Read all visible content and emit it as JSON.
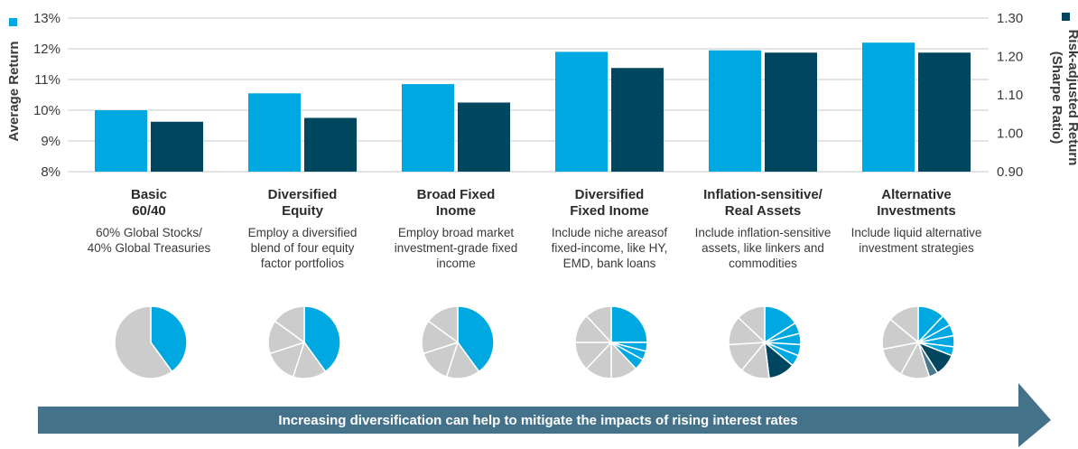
{
  "chart_data": {
    "type": "bar",
    "left_axis": {
      "label": "Average Return",
      "ticks": [
        "8%",
        "9%",
        "10%",
        "11%",
        "12%",
        "13%"
      ],
      "range": [
        8,
        13
      ],
      "color": "#00a8e1"
    },
    "right_axis": {
      "label_lines": [
        "Risk-adjusted Return",
        "(Sharpe Ratio)"
      ],
      "ticks": [
        "0.90",
        "1.00",
        "1.10",
        "1.20",
        "1.30"
      ],
      "range": [
        0.9,
        1.3
      ],
      "color": "#00465e"
    },
    "grid": true,
    "categories": [
      {
        "title": [
          "Basic",
          "60/40"
        ],
        "desc": [
          "60% Global Stocks/",
          "40% Global Treasuries"
        ]
      },
      {
        "title": [
          "Diversified",
          "Equity"
        ],
        "desc": [
          "Employ a diversified",
          "blend of four equity",
          "factor portfolios"
        ]
      },
      {
        "title": [
          "Broad Fixed",
          "Inome"
        ],
        "desc": [
          "Employ broad market",
          "investment-grade fixed",
          "income"
        ]
      },
      {
        "title": [
          "Diversified",
          "Fixed Inome"
        ],
        "desc": [
          "Include niche areasof",
          "fixed-income, like HY,",
          "EMD, bank loans"
        ]
      },
      {
        "title": [
          "Inflation-sensitive/",
          "Real Assets"
        ],
        "desc": [
          "Include inflation-sensitive",
          "assets, like linkers and",
          "commodities"
        ]
      },
      {
        "title": [
          "Alternative",
          "Investments"
        ],
        "desc": [
          "Include liquid alternative",
          "investment strategies"
        ]
      }
    ],
    "series": [
      {
        "axis": "left",
        "color": "#00a8e1",
        "values": [
          10.0,
          10.55,
          10.85,
          11.9,
          11.95,
          12.2
        ]
      },
      {
        "axis": "right",
        "color": "#00465e",
        "values": [
          1.03,
          1.04,
          1.08,
          1.17,
          1.21,
          1.21
        ]
      }
    ],
    "pies": [
      {
        "slices": [
          {
            "value": 40,
            "color": "#00a8e1"
          },
          {
            "value": 60,
            "color": "#cccccc"
          }
        ]
      },
      {
        "slices": [
          {
            "value": 40,
            "color": "#00a8e1"
          },
          {
            "value": 15,
            "color": "#cccccc"
          },
          {
            "value": 15,
            "color": "#cccccc"
          },
          {
            "value": 15,
            "color": "#cccccc"
          },
          {
            "value": 15,
            "color": "#cccccc"
          }
        ]
      },
      {
        "slices": [
          {
            "value": 40,
            "color": "#00a8e1"
          },
          {
            "value": 15,
            "color": "#cccccc"
          },
          {
            "value": 15,
            "color": "#cccccc"
          },
          {
            "value": 15,
            "color": "#cccccc"
          },
          {
            "value": 15,
            "color": "#cccccc"
          }
        ]
      },
      {
        "slices": [
          {
            "value": 25,
            "color": "#00a8e1"
          },
          {
            "value": 4,
            "color": "#00a8e1"
          },
          {
            "value": 4,
            "color": "#00a8e1"
          },
          {
            "value": 5,
            "color": "#00a8e1"
          },
          {
            "value": 12,
            "color": "#cccccc"
          },
          {
            "value": 12,
            "color": "#cccccc"
          },
          {
            "value": 13,
            "color": "#cccccc"
          },
          {
            "value": 13,
            "color": "#cccccc"
          },
          {
            "value": 12,
            "color": "#cccccc"
          }
        ]
      },
      {
        "slices": [
          {
            "value": 16,
            "color": "#00a8e1"
          },
          {
            "value": 5,
            "color": "#00a8e1"
          },
          {
            "value": 5,
            "color": "#00a8e1"
          },
          {
            "value": 5,
            "color": "#00a8e1"
          },
          {
            "value": 5,
            "color": "#00a8e1"
          },
          {
            "value": 12,
            "color": "#00465e"
          },
          {
            "value": 13,
            "color": "#cccccc"
          },
          {
            "value": 13,
            "color": "#cccccc"
          },
          {
            "value": 13,
            "color": "#cccccc"
          },
          {
            "value": 13,
            "color": "#cccccc"
          }
        ]
      },
      {
        "slices": [
          {
            "value": 12,
            "color": "#00a8e1"
          },
          {
            "value": 5,
            "color": "#00a8e1"
          },
          {
            "value": 5,
            "color": "#00a8e1"
          },
          {
            "value": 5,
            "color": "#00a8e1"
          },
          {
            "value": 4,
            "color": "#00a8e1"
          },
          {
            "value": 10,
            "color": "#00465e"
          },
          {
            "value": 4,
            "color": "#4a7890"
          },
          {
            "value": 13,
            "color": "#cccccc"
          },
          {
            "value": 14,
            "color": "#cccccc"
          },
          {
            "value": 14,
            "color": "#cccccc"
          },
          {
            "value": 14,
            "color": "#cccccc"
          }
        ]
      }
    ],
    "banner": {
      "text": "Increasing diversification can help to mitigate the impacts of rising interest rates",
      "color": "#44728a"
    }
  }
}
